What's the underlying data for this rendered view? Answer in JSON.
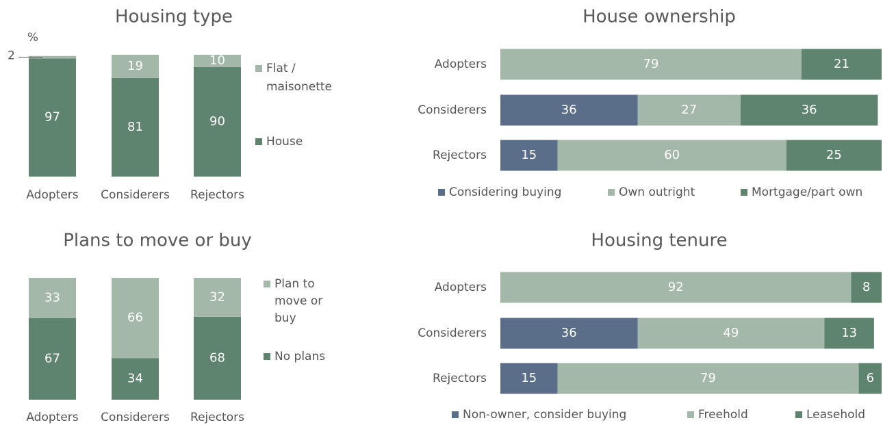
{
  "chart_data": [
    {
      "type": "bar",
      "orientation": "vertical",
      "stacked": true,
      "title": "Housing type",
      "y_label": "%",
      "categories": [
        "Adopters",
        "Considerers",
        "Rejectors"
      ],
      "series": [
        {
          "name": "House",
          "color": "#5e8470",
          "values": [
            97,
            81,
            90
          ]
        },
        {
          "name": "Flat / maisonette",
          "color": "#a3b8a9",
          "values": [
            2,
            19,
            10
          ]
        }
      ]
    },
    {
      "type": "bar",
      "orientation": "horizontal",
      "stacked": true,
      "title": "House ownership",
      "categories": [
        "Adopters",
        "Considerers",
        "Rejectors"
      ],
      "series": [
        {
          "name": "Considering buying",
          "color": "#5a6e8a",
          "values": [
            null,
            36,
            15
          ]
        },
        {
          "name": "Own outright",
          "color": "#a3b8a9",
          "values": [
            79,
            27,
            60
          ]
        },
        {
          "name": "Mortgage/part own",
          "color": "#5e8470",
          "values": [
            21,
            36,
            25
          ]
        }
      ]
    },
    {
      "type": "bar",
      "orientation": "vertical",
      "stacked": true,
      "title": "Plans to move or buy",
      "categories": [
        "Adopters",
        "Considerers",
        "Rejectors"
      ],
      "series": [
        {
          "name": "No plans",
          "color": "#5e8470",
          "values": [
            67,
            34,
            68
          ]
        },
        {
          "name": "Plan to move or buy",
          "color": "#a3b8a9",
          "values": [
            33,
            66,
            32
          ]
        }
      ]
    },
    {
      "type": "bar",
      "orientation": "horizontal",
      "stacked": true,
      "title": "Housing tenure",
      "categories": [
        "Adopters",
        "Considerers",
        "Rejectors"
      ],
      "series": [
        {
          "name": "Non-owner, consider buying",
          "color": "#5a6e8a",
          "values": [
            null,
            36,
            15
          ]
        },
        {
          "name": "Freehold",
          "color": "#a3b8a9",
          "values": [
            92,
            49,
            79
          ]
        },
        {
          "name": "Leasehold",
          "color": "#5e8470",
          "values": [
            8,
            13,
            6
          ]
        }
      ]
    }
  ]
}
